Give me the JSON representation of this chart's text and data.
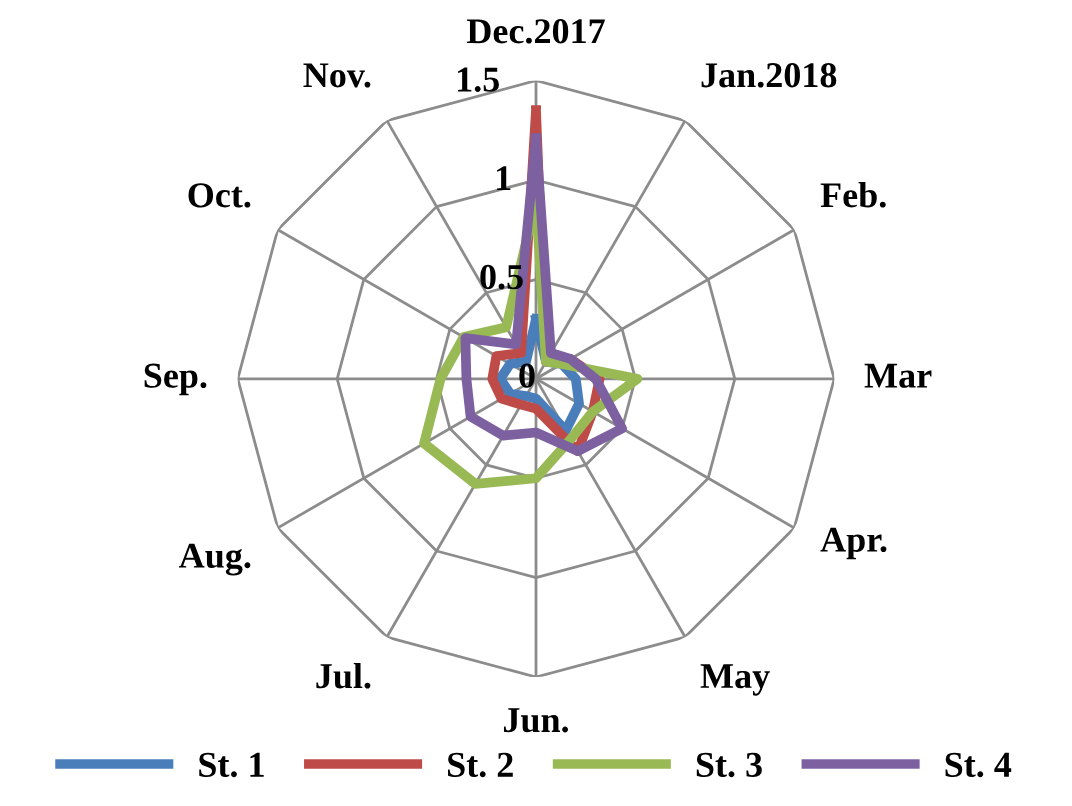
{
  "chart_data": {
    "type": "radar",
    "categories": [
      "Dec.2017",
      "Jan.2018",
      "Feb.",
      "Mar",
      "Apr.",
      "May",
      "Jun.",
      "Jul.",
      "Aug.",
      "Sep.",
      "Oct.",
      "Nov."
    ],
    "series": [
      {
        "name": "St. 1",
        "color": "#4a7ebb",
        "values": [
          0.3,
          0.1,
          0.15,
          0.2,
          0.25,
          0.3,
          0.1,
          0.1,
          0.15,
          0.18,
          0.15,
          0.1
        ]
      },
      {
        "name": "St. 2",
        "color": "#be4b48",
        "values": [
          1.35,
          0.1,
          0.2,
          0.32,
          0.33,
          0.42,
          0.15,
          0.15,
          0.2,
          0.22,
          0.23,
          0.15
        ]
      },
      {
        "name": "St. 3",
        "color": "#98b954",
        "values": [
          0.9,
          0.1,
          0.15,
          0.51,
          0.33,
          0.35,
          0.5,
          0.61,
          0.65,
          0.48,
          0.42,
          0.3
        ]
      },
      {
        "name": "St. 4",
        "color": "#7d60a0",
        "values": [
          1.21,
          0.15,
          0.2,
          0.3,
          0.5,
          0.42,
          0.27,
          0.33,
          0.38,
          0.35,
          0.41,
          0.2
        ]
      }
    ],
    "ylim": [
      0,
      1.5
    ],
    "yticks": [
      0,
      0.5,
      1,
      1.5
    ],
    "grid": true,
    "legend": "bottom",
    "marker": "none",
    "line_style": "solid"
  }
}
